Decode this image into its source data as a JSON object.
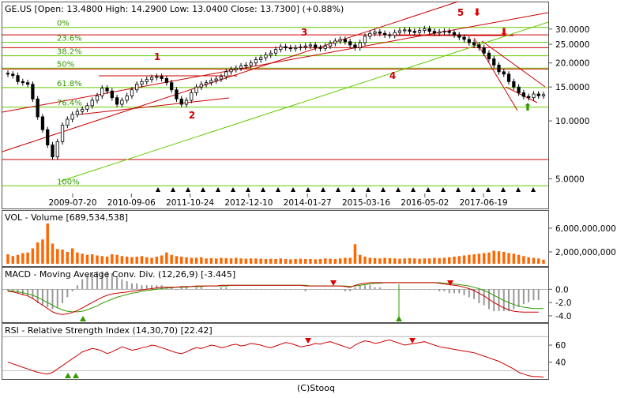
{
  "credit": "(C)Stooq",
  "colors": {
    "bull": "#ffffff",
    "bear": "#000000",
    "volume": "#ff6600",
    "macd": "#cc0000",
    "signal": "#339900",
    "hist": "#999999",
    "rsi": "#cc0000",
    "fib": "#66cc00",
    "resistance": "#cc0000",
    "channel_green": "#66cc00",
    "marker_red": "#dd0000",
    "marker_green": "#339900"
  },
  "chart_data": [
    {
      "type": "candlestick",
      "title": "GE.US [Open: 13.4800  High: 14.2900  Low: 13.0400  Close: 13.7300] (+0.88%)",
      "scale": "log",
      "ylim": [
        4.4,
        34.5
      ],
      "yticks": [
        30,
        25,
        20,
        15,
        10,
        5
      ],
      "ytick_labels": [
        "30.0000",
        "25.0000",
        "20.0000",
        "15.0000",
        "10.0000",
        "5.0000"
      ],
      "xtick_labels": [
        "2009-07-20",
        "2010-09-06",
        "2011-10-24",
        "2012-12-10",
        "2014-01-27",
        "2015-03-16",
        "2016-05-02",
        "2017-06-19"
      ],
      "grid": false,
      "close_path": [
        17.5,
        17.2,
        16.0,
        15.8,
        15.5,
        13.0,
        10.5,
        9.0,
        7.5,
        6.5,
        7.8,
        9.5,
        10.2,
        10.8,
        11.2,
        11.5,
        12.0,
        12.8,
        13.5,
        14.8,
        14.3,
        13.2,
        12.2,
        12.8,
        13.5,
        14.5,
        15.5,
        16.0,
        16.4,
        16.8,
        17.0,
        16.6,
        15.8,
        14.5,
        13.0,
        12.2,
        12.8,
        14.0,
        15.0,
        15.5,
        15.8,
        16.2,
        16.5,
        17.0,
        18.0,
        18.5,
        18.8,
        19.3,
        19.5,
        20.0,
        20.8,
        21.3,
        22.0,
        22.5,
        23.5,
        24.3,
        24.0,
        23.7,
        24.0,
        24.2,
        24.5,
        24.8,
        24.0,
        23.8,
        24.5,
        25.3,
        26.0,
        26.5,
        25.8,
        24.8,
        24.0,
        25.5,
        27.5,
        28.5,
        29.0,
        28.5,
        28.0,
        27.8,
        28.8,
        29.4,
        29.7,
        29.2,
        28.8,
        29.5,
        30.1,
        29.2,
        28.6,
        29.0,
        29.2,
        28.8,
        28.0,
        27.2,
        26.5,
        25.5,
        24.8,
        24.0,
        22.5,
        21.0,
        19.5,
        18.0,
        17.5,
        16.0,
        15.0,
        14.0,
        13.4,
        13.2,
        13.8,
        13.5,
        13.7
      ],
      "annotations": [
        "1",
        "2",
        "3",
        "4",
        "5"
      ],
      "fib_levels": [
        {
          "label": "0%",
          "value": 30.6
        },
        {
          "label": "23.6%",
          "value": 25.6
        },
        {
          "label": "38.2%",
          "value": 21.8
        },
        {
          "label": "50%",
          "value": 18.8
        },
        {
          "label": "61.8%",
          "value": 14.9
        },
        {
          "label": "76.4%",
          "value": 11.8
        },
        {
          "label": "100%",
          "value": 4.6
        }
      ]
    },
    {
      "type": "bar",
      "title": "VOL - Volume [689,534,538]",
      "ylim": [
        0,
        7200000000
      ],
      "ytick_values": [
        6000000000,
        2000000000
      ],
      "ytick_labels": [
        "6,000,000,000",
        "2,000,000,000"
      ],
      "values": [
        1600000000.0,
        1300000000.0,
        1500000000.0,
        1800000000.0,
        1900000000.0,
        2600000000.0,
        3600000000.0,
        4100000000.0,
        6800000000.0,
        3400000000.0,
        2500000000.0,
        2400000000.0,
        2000000000.0,
        2600000000.0,
        1900000000.0,
        1700000000.0,
        1500000000.0,
        1600000000.0,
        1400000000.0,
        1300000000.0,
        1200000000.0,
        1600000000.0,
        1500000000.0,
        1300000000.0,
        1200000000.0,
        1100000000.0,
        1200000000.0,
        1300000000.0,
        1100000000.0,
        1000000000.0,
        1200000000.0,
        1400000000.0,
        1900000000.0,
        1500000000.0,
        1300000000.0,
        1200000000.0,
        1100000000.0,
        1000000000.0,
        1000000000.0,
        1100000000.0,
        900000000.0,
        950000000.0,
        900000000.0,
        1000000000.0,
        950000000.0,
        900000000.0,
        1000000000.0,
        900000000.0,
        850000000.0,
        900000000.0,
        900000000.0,
        850000000.0,
        800000000.0,
        850000000.0,
        800000000.0,
        900000000.0,
        800000000.0,
        750000000.0,
        800000000.0,
        850000000.0,
        800000000.0,
        800000000.0,
        750000000.0,
        800000000.0,
        900000000.0,
        850000000.0,
        800000000.0,
        900000000.0,
        1000000000.0,
        1000000000.0,
        3300000000.0,
        1500000000.0,
        1200000000.0,
        1000000000.0,
        950000000.0,
        900000000.0,
        1000000000.0,
        950000000.0,
        900000000.0,
        850000000.0,
        900000000.0,
        950000000.0,
        900000000.0,
        850000000.0,
        900000000.0,
        900000000.0,
        1000000000.0,
        950000000.0,
        1000000000.0,
        1100000000.0,
        1200000000.0,
        1300000000.0,
        1400000000.0,
        1500000000.0,
        1600000000.0,
        1700000000.0,
        1800000000.0,
        1900000000.0,
        2200000000.0,
        2100000000.0,
        2000000000.0,
        1800000000.0,
        1700000000.0,
        1500000000.0,
        1300000000.0,
        1100000000.0,
        1000000000.0,
        900000000.0,
        690000000.0
      ]
    },
    {
      "type": "line",
      "title": "MACD - Moving Average Conv. Div. (12,26,9) [-3.445]",
      "ylim": [
        -4.6,
        1.7
      ],
      "ytick_values": [
        0.0,
        -2.0,
        -4.0
      ],
      "ytick_labels": [
        "0.0",
        "-2.0",
        "-4.0"
      ],
      "zero_line": true,
      "series": [
        {
          "name": "MACD",
          "values": [
            -0.3,
            -0.4,
            -0.6,
            -0.8,
            -1.0,
            -1.4,
            -1.9,
            -2.4,
            -2.9,
            -3.4,
            -3.7,
            -3.8,
            -3.7,
            -3.5,
            -3.2,
            -2.8,
            -2.4,
            -2.0,
            -1.6,
            -1.2,
            -0.9,
            -0.7,
            -0.6,
            -0.5,
            -0.4,
            -0.3,
            -0.2,
            -0.1,
            0.0,
            0.1,
            0.2,
            0.3,
            0.3,
            0.3,
            0.3,
            0.4,
            0.4,
            0.4,
            0.5,
            0.5,
            0.5,
            0.5,
            0.5,
            0.6,
            0.6,
            0.6,
            0.6,
            0.6,
            0.6,
            0.6,
            0.6,
            0.6,
            0.6,
            0.6,
            0.6,
            0.6,
            0.6,
            0.6,
            0.6,
            0.6,
            0.5,
            0.5,
            0.5,
            0.5,
            0.5,
            0.5,
            0.5,
            0.5,
            0.4,
            0.3,
            0.6,
            0.8,
            0.9,
            1.0,
            1.0,
            1.0,
            1.0,
            1.0,
            1.0,
            1.0,
            1.0,
            1.0,
            1.0,
            1.0,
            1.0,
            1.0,
            1.0,
            0.9,
            0.8,
            0.7,
            0.6,
            0.5,
            0.3,
            0.1,
            -0.2,
            -0.6,
            -1.0,
            -1.5,
            -2.0,
            -2.4,
            -2.8,
            -3.1,
            -3.3,
            -3.4,
            -3.45,
            -3.45,
            -3.45,
            -3.445
          ]
        },
        {
          "name": "Signal",
          "values": [
            -0.2,
            -0.3,
            -0.4,
            -0.5,
            -0.7,
            -0.9,
            -1.2,
            -1.6,
            -2.0,
            -2.4,
            -2.8,
            -3.1,
            -3.3,
            -3.4,
            -3.4,
            -3.3,
            -3.1,
            -2.8,
            -2.5,
            -2.1,
            -1.8,
            -1.5,
            -1.2,
            -1.0,
            -0.8,
            -0.6,
            -0.5,
            -0.3,
            -0.2,
            -0.1,
            0.0,
            0.1,
            0.2,
            0.2,
            0.3,
            0.3,
            0.3,
            0.4,
            0.4,
            0.4,
            0.5,
            0.5,
            0.5,
            0.5,
            0.5,
            0.6,
            0.6,
            0.6,
            0.6,
            0.6,
            0.6,
            0.6,
            0.6,
            0.6,
            0.6,
            0.6,
            0.6,
            0.6,
            0.6,
            0.6,
            0.6,
            0.5,
            0.5,
            0.5,
            0.5,
            0.5,
            0.5,
            0.5,
            0.5,
            0.4,
            0.5,
            0.6,
            0.7,
            0.8,
            0.9,
            0.9,
            1.0,
            1.0,
            1.0,
            1.0,
            1.0,
            1.0,
            1.0,
            1.0,
            1.0,
            1.0,
            1.0,
            1.0,
            0.9,
            0.9,
            0.8,
            0.7,
            0.6,
            0.5,
            0.3,
            0.1,
            -0.2,
            -0.5,
            -0.9,
            -1.3,
            -1.7,
            -2.0,
            -2.3,
            -2.5,
            -2.7,
            -2.8,
            -2.9,
            -2.9,
            -2.9
          ]
        }
      ]
    },
    {
      "type": "line",
      "title": "RSI - Relative Strength Index (14,30,70) [22.42]",
      "ylim": [
        22,
        73
      ],
      "ytick_values": [
        60,
        40
      ],
      "ytick_labels": [
        "60",
        "40"
      ],
      "levels": [
        70,
        30
      ],
      "series": [
        {
          "name": "RSI",
          "values": [
            40,
            38,
            36,
            34,
            32,
            30,
            28,
            27,
            26,
            28,
            32,
            36,
            40,
            44,
            48,
            52,
            54,
            56,
            55,
            53,
            50,
            52,
            55,
            58,
            56,
            54,
            55,
            57,
            58,
            60,
            59,
            57,
            55,
            53,
            51,
            50,
            52,
            55,
            57,
            56,
            58,
            60,
            59,
            57,
            58,
            60,
            61,
            59,
            60,
            62,
            61,
            60,
            58,
            57,
            59,
            61,
            63,
            62,
            60,
            58,
            59,
            60,
            62,
            61,
            63,
            64,
            62,
            60,
            58,
            56,
            60,
            63,
            65,
            64,
            62,
            63,
            65,
            66,
            64,
            62,
            60,
            61,
            62,
            63,
            64,
            62,
            60,
            58,
            57,
            56,
            55,
            54,
            53,
            52,
            51,
            49,
            47,
            45,
            43,
            41,
            38,
            35,
            32,
            28,
            26,
            24,
            23,
            23,
            22.42
          ]
        }
      ]
    }
  ]
}
